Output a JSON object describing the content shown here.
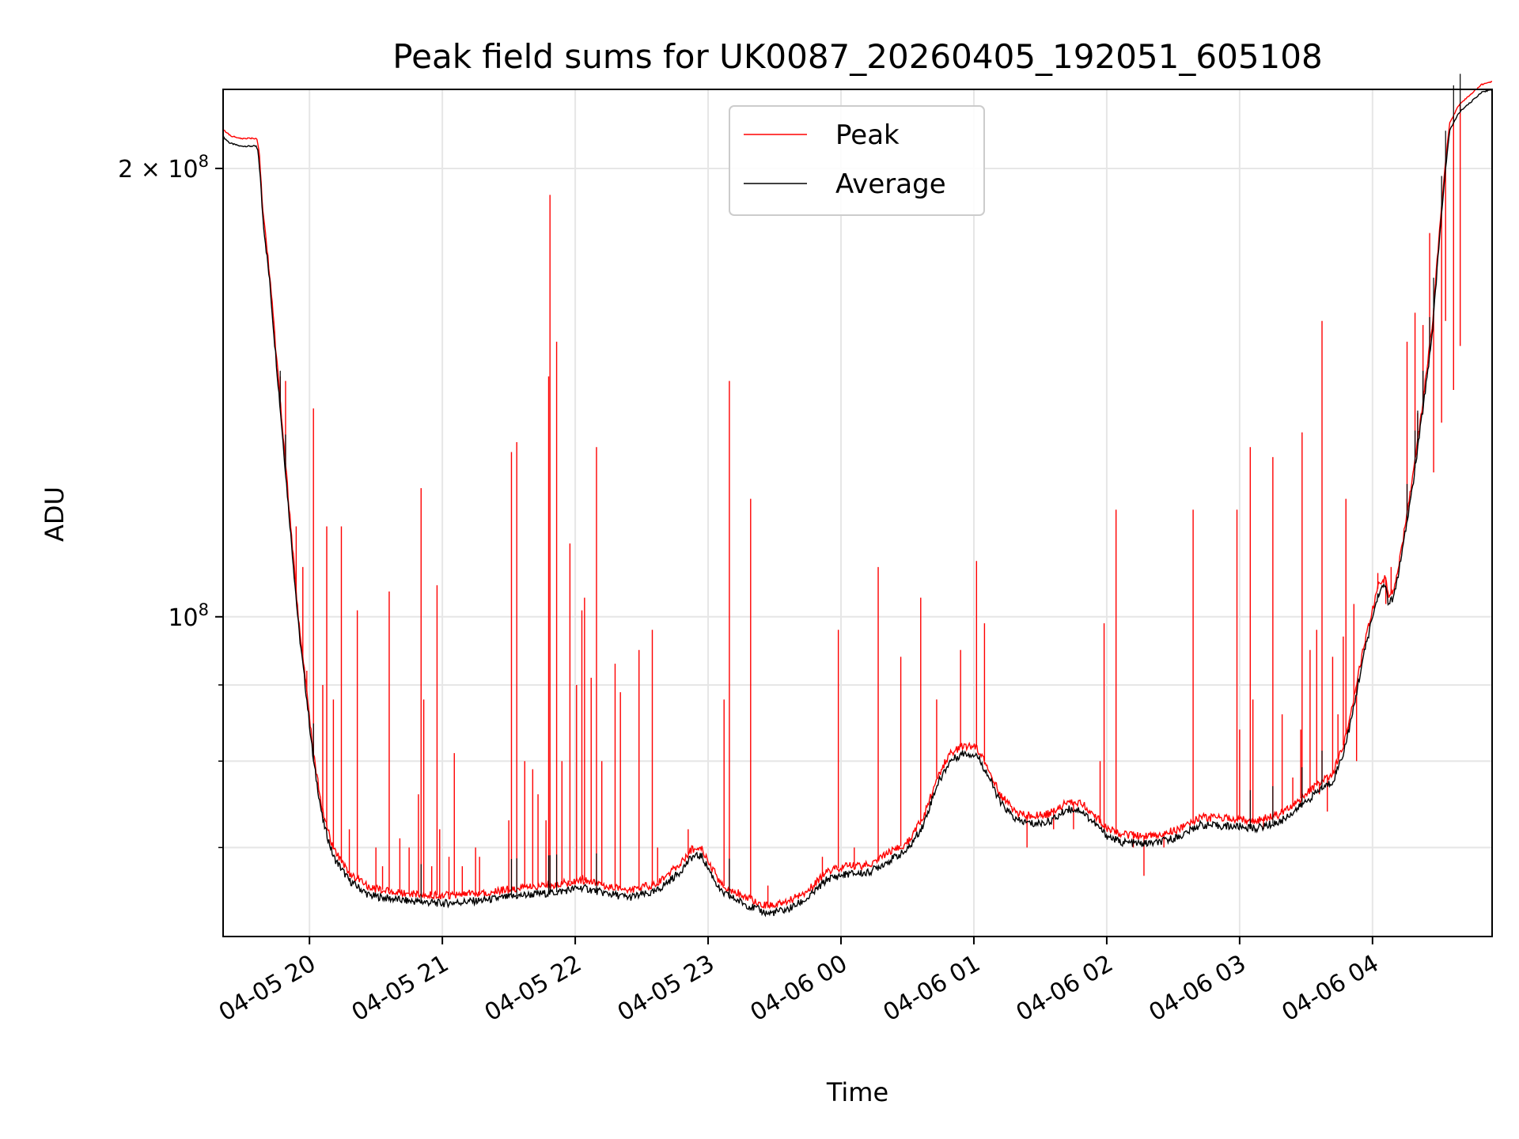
{
  "chart_data": {
    "type": "line",
    "title": "Peak field sums for UK0087_20260405_192051_605108",
    "xlabel": "Time",
    "ylabel": "ADU",
    "yscale": "log",
    "xlim_hours": [
      -0.65,
      8.9
    ],
    "ylim": [
      61000000,
      226000000
    ],
    "grid": true,
    "legend_position": "top-center",
    "x_ticks": [
      {
        "label": "04-05 20",
        "hour": 0
      },
      {
        "label": "04-05 21",
        "hour": 1
      },
      {
        "label": "04-05 22",
        "hour": 2
      },
      {
        "label": "04-05 23",
        "hour": 3
      },
      {
        "label": "04-06 00",
        "hour": 4
      },
      {
        "label": "04-06 01",
        "hour": 5
      },
      {
        "label": "04-06 02",
        "hour": 6
      },
      {
        "label": "04-06 03",
        "hour": 7
      },
      {
        "label": "04-06 04",
        "hour": 8
      }
    ],
    "y_major_ticks": [
      {
        "value": 100000000,
        "mantissa": "10",
        "exp": "8"
      },
      {
        "value": 200000000,
        "mantissa": "2 × 10",
        "exp": "8"
      }
    ],
    "y_minor_ticks": [
      70000000,
      80000000,
      90000000
    ],
    "series": [
      {
        "name": "Peak",
        "color": "#ff0000",
        "baseline_offset": 1.012,
        "spikes": [
          [
            -0.22,
            145000000
          ],
          [
            -0.18,
            144000000
          ],
          [
            -0.1,
            115000000
          ],
          [
            -0.05,
            108000000
          ],
          [
            -0.02,
            92000000
          ],
          [
            0.03,
            138000000
          ],
          [
            0.1,
            90000000
          ],
          [
            0.13,
            115000000
          ],
          [
            0.18,
            88000000
          ],
          [
            0.24,
            115000000
          ],
          [
            0.3,
            72000000
          ],
          [
            0.36,
            101000000
          ],
          [
            0.5,
            70000000
          ],
          [
            0.55,
            68000000
          ],
          [
            0.6,
            104000000
          ],
          [
            0.68,
            71000000
          ],
          [
            0.75,
            70000000
          ],
          [
            0.82,
            76000000
          ],
          [
            0.84,
            122000000
          ],
          [
            0.86,
            88000000
          ],
          [
            0.92,
            68000000
          ],
          [
            0.96,
            105000000
          ],
          [
            0.98,
            72000000
          ],
          [
            1.05,
            69000000
          ],
          [
            1.09,
            81000000
          ],
          [
            1.15,
            68000000
          ],
          [
            1.25,
            70000000
          ],
          [
            1.28,
            69000000
          ],
          [
            1.5,
            73000000
          ],
          [
            1.52,
            129000000
          ],
          [
            1.56,
            131000000
          ],
          [
            1.62,
            80000000
          ],
          [
            1.68,
            79000000
          ],
          [
            1.72,
            76000000
          ],
          [
            1.78,
            73000000
          ],
          [
            1.8,
            145000000
          ],
          [
            1.81,
            192000000
          ],
          [
            1.86,
            153000000
          ],
          [
            1.9,
            80000000
          ],
          [
            1.96,
            112000000
          ],
          [
            2.01,
            90000000
          ],
          [
            2.05,
            101000000
          ],
          [
            2.07,
            103000000
          ],
          [
            2.12,
            91000000
          ],
          [
            2.16,
            130000000
          ],
          [
            2.2,
            80000000
          ],
          [
            2.3,
            93000000
          ],
          [
            2.34,
            89000000
          ],
          [
            2.48,
            95000000
          ],
          [
            2.58,
            98000000
          ],
          [
            2.62,
            70000000
          ],
          [
            2.85,
            72000000
          ],
          [
            3.12,
            88000000
          ],
          [
            3.16,
            144000000
          ],
          [
            3.32,
            120000000
          ],
          [
            3.45,
            66000000
          ],
          [
            3.55,
            64000000
          ],
          [
            3.86,
            69000000
          ],
          [
            3.98,
            98000000
          ],
          [
            4.1,
            70000000
          ],
          [
            4.28,
            108000000
          ],
          [
            4.45,
            94000000
          ],
          [
            4.6,
            103000000
          ],
          [
            4.72,
            88000000
          ],
          [
            4.9,
            95000000
          ],
          [
            5.02,
            109000000
          ],
          [
            5.08,
            99000000
          ],
          [
            5.4,
            70000000
          ],
          [
            5.6,
            72000000
          ],
          [
            5.75,
            72000000
          ],
          [
            5.95,
            80000000
          ],
          [
            5.98,
            99000000
          ],
          [
            6.07,
            118000000
          ],
          [
            6.2,
            70000000
          ],
          [
            6.28,
            67000000
          ],
          [
            6.43,
            70000000
          ],
          [
            6.65,
            118000000
          ],
          [
            6.98,
            118000000
          ],
          [
            7.0,
            84000000
          ],
          [
            7.08,
            130000000
          ],
          [
            7.1,
            88000000
          ],
          [
            7.18,
            72000000
          ],
          [
            7.25,
            128000000
          ],
          [
            7.32,
            86000000
          ],
          [
            7.4,
            78000000
          ],
          [
            7.46,
            84000000
          ],
          [
            7.47,
            133000000
          ],
          [
            7.53,
            95000000
          ],
          [
            7.58,
            98000000
          ],
          [
            7.6,
            76000000
          ],
          [
            7.62,
            158000000
          ],
          [
            7.66,
            74000000
          ],
          [
            7.7,
            94000000
          ],
          [
            7.74,
            86000000
          ],
          [
            7.78,
            97000000
          ],
          [
            7.8,
            120000000
          ],
          [
            7.82,
            84000000
          ],
          [
            7.86,
            102000000
          ],
          [
            7.88,
            80000000
          ],
          [
            8.04,
            107000000
          ],
          [
            8.1,
            102000000
          ],
          [
            8.14,
            108000000
          ],
          [
            8.26,
            153000000
          ],
          [
            8.32,
            160000000
          ],
          [
            8.34,
            137000000
          ],
          [
            8.38,
            157000000
          ],
          [
            8.43,
            181000000
          ],
          [
            8.46,
            125000000
          ],
          [
            8.52,
            135000000
          ],
          [
            8.55,
            158000000
          ],
          [
            8.61,
            142000000
          ],
          [
            8.66,
            152000000
          ]
        ]
      },
      {
        "name": "Average",
        "color": "#000000",
        "curve": [
          [
            -0.65,
            210000000
          ],
          [
            -0.6,
            208000000
          ],
          [
            -0.52,
            207000000
          ],
          [
            -0.4,
            207000000
          ],
          [
            -0.38,
            203000000
          ],
          [
            -0.35,
            185000000
          ],
          [
            -0.3,
            168000000
          ],
          [
            -0.26,
            152000000
          ],
          [
            -0.22,
            138000000
          ],
          [
            -0.17,
            122000000
          ],
          [
            -0.12,
            108000000
          ],
          [
            -0.08,
            98000000
          ],
          [
            -0.02,
            88000000
          ],
          [
            0.03,
            80000000
          ],
          [
            0.1,
            73000000
          ],
          [
            0.18,
            69000000
          ],
          [
            0.3,
            66500000
          ],
          [
            0.45,
            65000000
          ],
          [
            0.7,
            64500000
          ],
          [
            1.0,
            64200000
          ],
          [
            1.3,
            64500000
          ],
          [
            1.6,
            65000000
          ],
          [
            1.85,
            65300000
          ],
          [
            2.05,
            65800000
          ],
          [
            2.2,
            65300000
          ],
          [
            2.4,
            64800000
          ],
          [
            2.6,
            65300000
          ],
          [
            2.78,
            67300000
          ],
          [
            2.88,
            69000000
          ],
          [
            2.95,
            69100000
          ],
          [
            3.02,
            67300000
          ],
          [
            3.1,
            65300000
          ],
          [
            3.3,
            64000000
          ],
          [
            3.45,
            63200000
          ],
          [
            3.6,
            63600000
          ],
          [
            3.75,
            64700000
          ],
          [
            3.9,
            66700000
          ],
          [
            4.05,
            67200000
          ],
          [
            4.2,
            67300000
          ],
          [
            4.35,
            68500000
          ],
          [
            4.5,
            69700000
          ],
          [
            4.62,
            72500000
          ],
          [
            4.72,
            77000000
          ],
          [
            4.82,
            80000000
          ],
          [
            4.92,
            81000000
          ],
          [
            5.02,
            80800000
          ],
          [
            5.1,
            78500000
          ],
          [
            5.2,
            75000000
          ],
          [
            5.32,
            73000000
          ],
          [
            5.45,
            72600000
          ],
          [
            5.55,
            72800000
          ],
          [
            5.62,
            73300000
          ],
          [
            5.7,
            74300000
          ],
          [
            5.8,
            74200000
          ],
          [
            5.9,
            72800000
          ],
          [
            6.0,
            71300000
          ],
          [
            6.1,
            70600000
          ],
          [
            6.25,
            70400000
          ],
          [
            6.38,
            70500000
          ],
          [
            6.55,
            71200000
          ],
          [
            6.7,
            72500000
          ],
          [
            6.8,
            72400000
          ],
          [
            7.0,
            72300000
          ],
          [
            7.12,
            72100000
          ],
          [
            7.3,
            72800000
          ],
          [
            7.45,
            74500000
          ],
          [
            7.6,
            76500000
          ],
          [
            7.7,
            77500000
          ],
          [
            7.78,
            81000000
          ],
          [
            7.85,
            86000000
          ],
          [
            7.92,
            93000000
          ],
          [
            8.0,
            100000000
          ],
          [
            8.05,
            104000000
          ],
          [
            8.1,
            105000000
          ],
          [
            8.12,
            102000000
          ],
          [
            8.16,
            103000000
          ],
          [
            8.22,
            110000000
          ],
          [
            8.3,
            122000000
          ],
          [
            8.38,
            138000000
          ],
          [
            8.45,
            155000000
          ],
          [
            8.5,
            178000000
          ],
          [
            8.55,
            200000000
          ],
          [
            8.58,
            212000000
          ],
          [
            8.65,
            218000000
          ],
          [
            8.75,
            222000000
          ],
          [
            8.82,
            225000000
          ],
          [
            8.9,
            226000000
          ]
        ]
      }
    ]
  }
}
